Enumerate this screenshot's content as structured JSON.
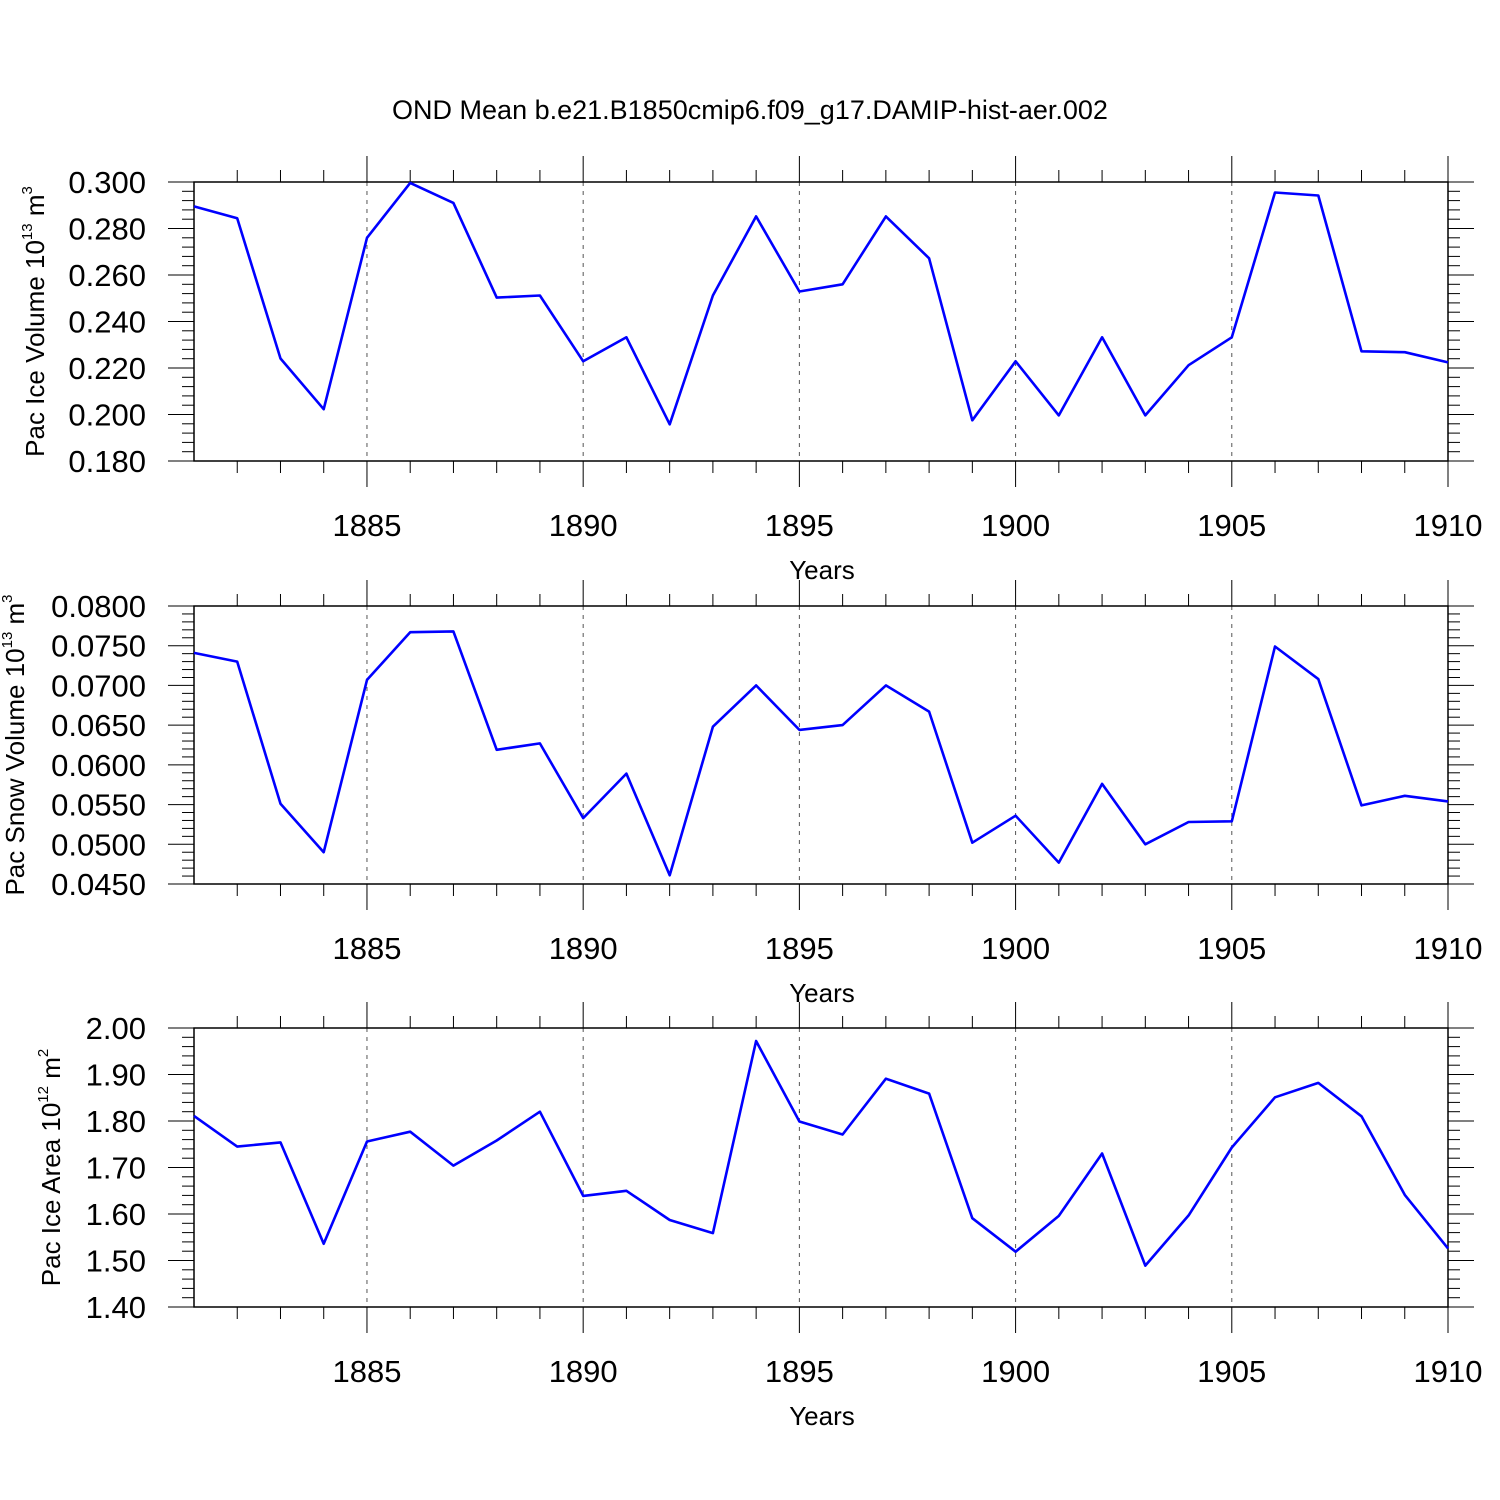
{
  "title": "OND Mean b.e21.B1850cmip6.f09_g17.DAMIP-hist-aer.002",
  "colors": {
    "line": "#0000ff",
    "axis": "#000000",
    "grid": "#555555"
  },
  "chart_data": [
    {
      "type": "line",
      "ylabel": {
        "prefix": "Pac Ice Volume 10",
        "exp": "13",
        "unit": " m",
        "unit_exp": "3"
      },
      "xlabel": "Years",
      "xlim": [
        1881,
        1910
      ],
      "ylim": [
        0.18,
        0.3
      ],
      "x_ticks": [
        1885,
        1890,
        1895,
        1900,
        1905,
        1910
      ],
      "y_ticks": [
        "0.180",
        "0.200",
        "0.220",
        "0.240",
        "0.260",
        "0.280",
        "0.300"
      ],
      "grid": "vertical dashed at major x ticks",
      "x": [
        1881,
        1882,
        1883,
        1884,
        1885,
        1886,
        1887,
        1888,
        1889,
        1890,
        1891,
        1892,
        1893,
        1894,
        1895,
        1896,
        1897,
        1898,
        1899,
        1900,
        1901,
        1902,
        1903,
        1904,
        1905,
        1906,
        1907,
        1908,
        1909,
        1910
      ],
      "values": [
        0.2895,
        0.2844,
        0.2241,
        0.2023,
        0.276,
        0.2996,
        0.291,
        0.2503,
        0.2512,
        0.2229,
        0.2332,
        0.1958,
        0.2512,
        0.2852,
        0.2529,
        0.256,
        0.2852,
        0.2672,
        0.1975,
        0.2229,
        0.1996,
        0.2332,
        0.1996,
        0.2212,
        0.2332,
        0.2955,
        0.2942,
        0.2272,
        0.2268,
        0.2224
      ]
    },
    {
      "type": "line",
      "ylabel": {
        "prefix": "Pac Snow Volume 10",
        "exp": "13",
        "unit": " m",
        "unit_exp": "3"
      },
      "xlabel": "Years",
      "xlim": [
        1881,
        1910
      ],
      "ylim": [
        0.045,
        0.08
      ],
      "x_ticks": [
        1885,
        1890,
        1895,
        1900,
        1905,
        1910
      ],
      "y_ticks": [
        "0.0450",
        "0.0500",
        "0.0550",
        "0.0600",
        "0.0650",
        "0.0700",
        "0.0750",
        "0.0800"
      ],
      "grid": "vertical dashed at major x ticks",
      "x": [
        1881,
        1882,
        1883,
        1884,
        1885,
        1886,
        1887,
        1888,
        1889,
        1890,
        1891,
        1892,
        1893,
        1894,
        1895,
        1896,
        1897,
        1898,
        1899,
        1900,
        1901,
        1902,
        1903,
        1904,
        1905,
        1906,
        1907,
        1908,
        1909,
        1910
      ],
      "values": [
        0.0741,
        0.073,
        0.0551,
        0.049,
        0.0707,
        0.0767,
        0.0768,
        0.0619,
        0.0627,
        0.0533,
        0.0589,
        0.0461,
        0.0648,
        0.07,
        0.0644,
        0.065,
        0.07,
        0.0667,
        0.0502,
        0.0536,
        0.0477,
        0.0576,
        0.05,
        0.0528,
        0.0529,
        0.0749,
        0.0708,
        0.0549,
        0.0561,
        0.0554
      ]
    },
    {
      "type": "line",
      "ylabel": {
        "prefix": "Pac Ice Area 10",
        "exp": "12",
        "unit": " m",
        "unit_exp": "2"
      },
      "xlabel": "Years",
      "xlim": [
        1881,
        1910
      ],
      "ylim": [
        1.4,
        2.0
      ],
      "x_ticks": [
        1885,
        1890,
        1895,
        1900,
        1905,
        1910
      ],
      "y_ticks": [
        "1.40",
        "1.50",
        "1.60",
        "1.70",
        "1.80",
        "1.90",
        "2.00"
      ],
      "grid": "vertical dashed at major x ticks",
      "x": [
        1881,
        1882,
        1883,
        1884,
        1885,
        1886,
        1887,
        1888,
        1889,
        1890,
        1891,
        1892,
        1893,
        1894,
        1895,
        1896,
        1897,
        1898,
        1899,
        1900,
        1901,
        1902,
        1903,
        1904,
        1905,
        1906,
        1907,
        1908,
        1909,
        1910
      ],
      "values": [
        1.811,
        1.745,
        1.754,
        1.536,
        1.756,
        1.777,
        1.704,
        1.758,
        1.82,
        1.639,
        1.65,
        1.587,
        1.559,
        1.972,
        1.799,
        1.771,
        1.891,
        1.859,
        1.591,
        1.519,
        1.596,
        1.73,
        1.489,
        1.597,
        1.743,
        1.851,
        1.882,
        1.81,
        1.641,
        1.526
      ]
    }
  ]
}
